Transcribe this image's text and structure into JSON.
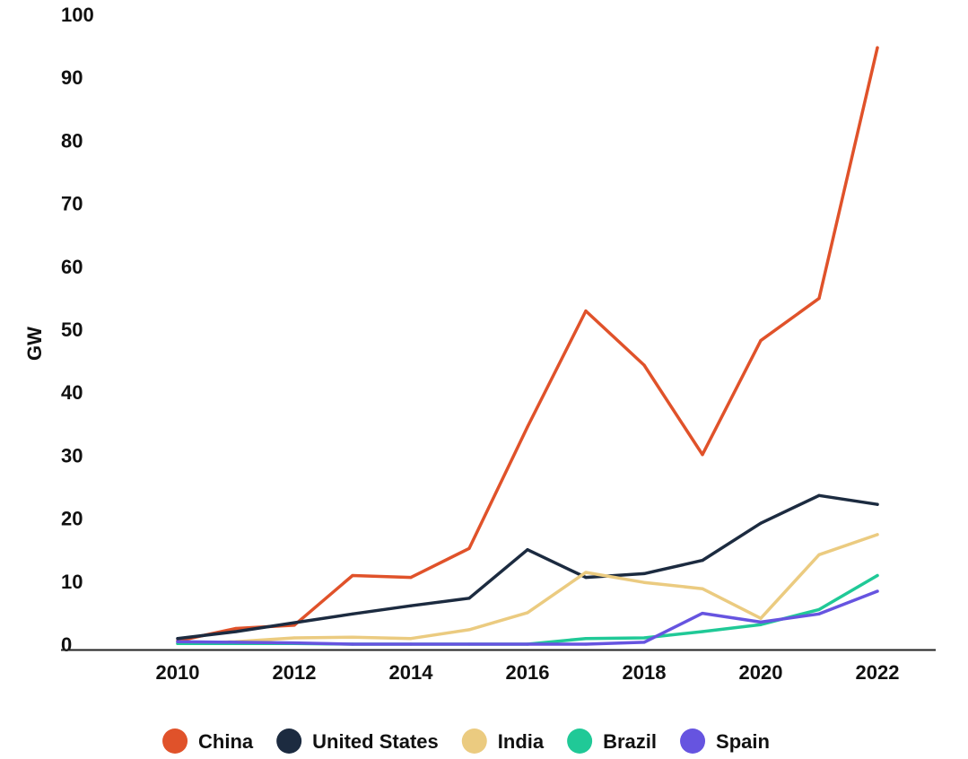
{
  "chart_data": {
    "type": "line",
    "title": "",
    "xlabel": "",
    "ylabel": "GW",
    "x": [
      2010,
      2011,
      2012,
      2013,
      2014,
      2015,
      2016,
      2017,
      2018,
      2019,
      2020,
      2021,
      2022
    ],
    "xticks": [
      "2010",
      "2012",
      "2014",
      "2016",
      "2018",
      "2020",
      "2022"
    ],
    "xlim": [
      2008,
      2023
    ],
    "yticks": [
      "0",
      "10",
      "20",
      "30",
      "40",
      "50",
      "60",
      "70",
      "80",
      "90",
      "100"
    ],
    "ylim": [
      0,
      100
    ],
    "grid": false,
    "legend_position": "bottom",
    "series": [
      {
        "name": "China",
        "color": "#E0522A",
        "values": [
          0.5,
          2.5,
          3,
          10.9,
          10.6,
          15.2,
          34.5,
          52.9,
          44.3,
          30.1,
          48.2,
          54.9,
          94.7
        ]
      },
      {
        "name": "United States",
        "color": "#1C2B40",
        "values": [
          0.9,
          2,
          3.4,
          4.8,
          6.1,
          7.3,
          15,
          10.6,
          11.2,
          13.3,
          19.2,
          23.6,
          22.2
        ]
      },
      {
        "name": "India",
        "color": "#EBCB80",
        "values": [
          0.1,
          0.4,
          1,
          1.1,
          0.9,
          2.3,
          5,
          11.4,
          9.8,
          8.8,
          4.1,
          14.2,
          17.4
        ]
      },
      {
        "name": "Brazil",
        "color": "#20C997",
        "values": [
          0.1,
          0.1,
          0.1,
          0,
          0,
          0,
          0,
          0.9,
          1,
          2,
          3.1,
          5.5,
          10.9
        ]
      },
      {
        "name": "Spain",
        "color": "#6654E0",
        "values": [
          0.4,
          0.3,
          0.2,
          0,
          0,
          0,
          0,
          0,
          0.3,
          4.9,
          3.5,
          4.8,
          8.4
        ]
      }
    ]
  }
}
